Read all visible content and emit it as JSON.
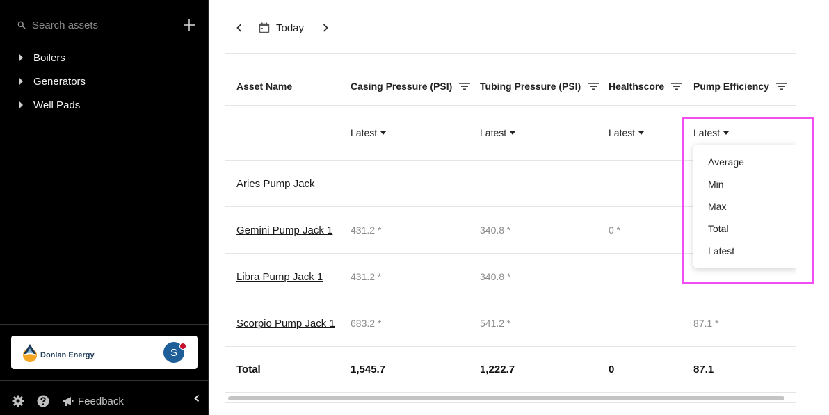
{
  "sidebar": {
    "search": {
      "placeholder": "Search assets",
      "value": ""
    },
    "tree": [
      {
        "label": "Boilers"
      },
      {
        "label": "Generators"
      },
      {
        "label": "Well Pads"
      }
    ],
    "org": {
      "name": "Donlan Energy",
      "avatar_initial": "S"
    },
    "bottom": {
      "feedback_label": "Feedback"
    }
  },
  "date_nav": {
    "label": "Today"
  },
  "table": {
    "columns": [
      {
        "label": "Asset Name"
      },
      {
        "label": "Casing Pressure (PSI)",
        "aggregation": "Latest"
      },
      {
        "label": "Tubing Pressure (PSI)",
        "aggregation": "Latest"
      },
      {
        "label": "Healthscore",
        "aggregation": "Latest"
      },
      {
        "label": "Pump Efficiency",
        "aggregation": "Latest"
      }
    ],
    "rows": [
      {
        "name": "Aries Pump Jack",
        "values": [
          "",
          "",
          "",
          ""
        ]
      },
      {
        "name": "Gemini Pump Jack 1",
        "values": [
          "431.2 *",
          "340.8 *",
          "0 *",
          ""
        ]
      },
      {
        "name": "Libra Pump Jack 1",
        "values": [
          "431.2 *",
          "340.8 *",
          "",
          ""
        ]
      },
      {
        "name": "Scorpio Pump Jack 1",
        "values": [
          "683.2 *",
          "541.2 *",
          "",
          "87.1 *"
        ]
      }
    ],
    "total": {
      "label": "Total",
      "values": [
        "1,545.7",
        "1,222.7",
        "0",
        "87.1"
      ]
    }
  },
  "aggregation_menu": {
    "options": [
      "Average",
      "Min",
      "Max",
      "Total",
      "Latest"
    ]
  },
  "colors": {
    "highlight": "#f24df2",
    "avatar": "#1f5f99",
    "notification_dot": "#c8102e"
  }
}
